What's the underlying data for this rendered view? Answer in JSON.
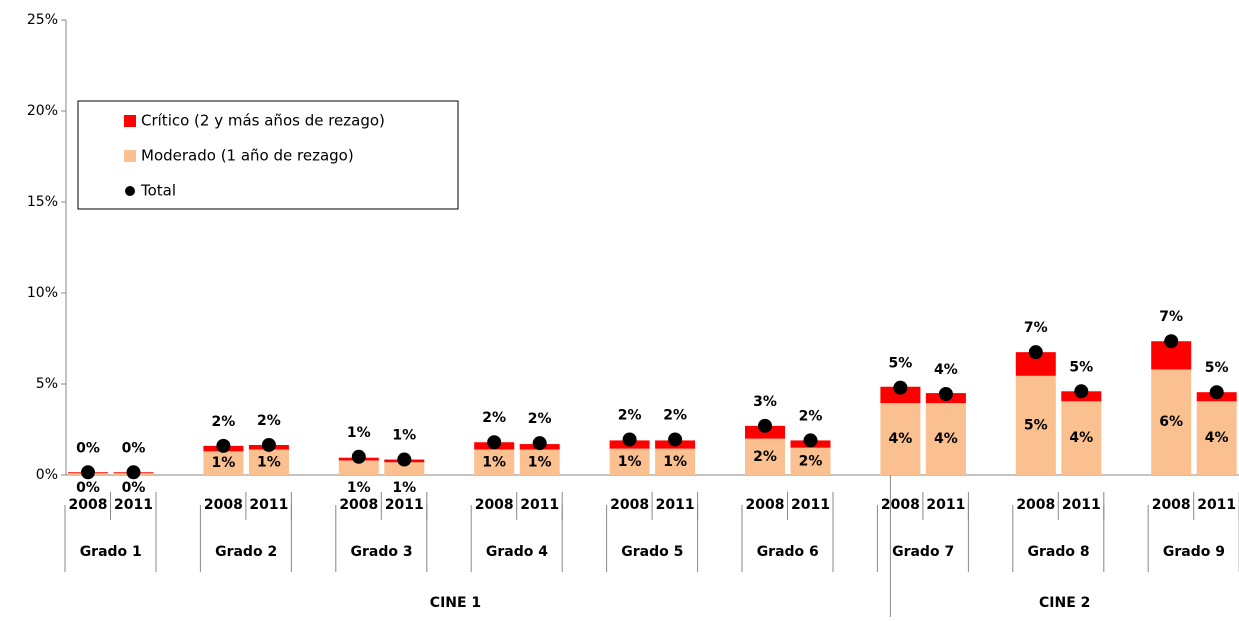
{
  "chart_data": {
    "type": "bar",
    "stacked": true,
    "ylim": [
      0,
      25
    ],
    "yticks": [
      {
        "value": 0,
        "label": "0%"
      },
      {
        "value": 5,
        "label": "5%"
      },
      {
        "value": 10,
        "label": "10%"
      },
      {
        "value": 15,
        "label": "15%"
      },
      {
        "value": 20,
        "label": "20%"
      },
      {
        "value": 25,
        "label": "25%"
      }
    ],
    "groups": [
      {
        "label": "CINE 1",
        "groups": [
          {
            "label": "Grado 1",
            "categories": [
              "2008",
              "2011"
            ]
          },
          {
            "label": "Grado 2",
            "categories": [
              "2008",
              "2011"
            ]
          },
          {
            "label": "Grado 3",
            "categories": [
              "2008",
              "2011"
            ]
          },
          {
            "label": "Grado 4",
            "categories": [
              "2008",
              "2011"
            ]
          },
          {
            "label": "Grado 5",
            "categories": [
              "2008",
              "2011"
            ]
          },
          {
            "label": "Grado 6",
            "categories": [
              "2008",
              "2011"
            ]
          }
        ]
      },
      {
        "label": "CINE 2",
        "groups": [
          {
            "label": "Grado 7",
            "categories": [
              "2008",
              "2011"
            ]
          },
          {
            "label": "Grado 8",
            "categories": [
              "2008",
              "2011"
            ]
          },
          {
            "label": "Grado 9",
            "categories": [
              "2008",
              "2011"
            ]
          }
        ]
      }
    ],
    "series": [
      {
        "name": "Crítico (2 y más años de rezago)",
        "color": "#ff0000",
        "kind": "bar",
        "values": [
          0.05,
          0.05,
          0.3,
          0.25,
          0.15,
          0.15,
          0.4,
          0.3,
          0.45,
          0.45,
          0.7,
          0.4,
          0.9,
          0.55,
          1.3,
          0.55,
          1.55,
          0.5
        ]
      },
      {
        "name": "Moderado (1 año de rezago)",
        "color": "#fac090",
        "kind": "bar",
        "values": [
          0.1,
          0.1,
          1.3,
          1.4,
          0.8,
          0.7,
          1.4,
          1.4,
          1.45,
          1.45,
          2.0,
          1.5,
          3.95,
          3.95,
          5.45,
          4.05,
          5.8,
          4.05
        ],
        "value_labels": [
          "0%",
          "0%",
          "1%",
          "1%",
          "1%",
          "1%",
          "1%",
          "1%",
          "1%",
          "1%",
          "2%",
          "2%",
          "4%",
          "4%",
          "5%",
          "4%",
          "6%",
          "4%"
        ]
      },
      {
        "name": "Total",
        "color": "#000000",
        "kind": "marker",
        "values": [
          0.15,
          0.15,
          1.6,
          1.65,
          1.0,
          0.85,
          1.8,
          1.75,
          1.95,
          1.95,
          2.7,
          1.9,
          4.8,
          4.45,
          6.75,
          4.6,
          7.35,
          4.55
        ],
        "value_labels": [
          "0%",
          "0%",
          "2%",
          "2%",
          "1%",
          "1%",
          "2%",
          "2%",
          "2%",
          "2%",
          "3%",
          "2%",
          "5%",
          "4%",
          "7%",
          "5%",
          "7%",
          "5%"
        ]
      }
    ],
    "legend": "upper left"
  }
}
